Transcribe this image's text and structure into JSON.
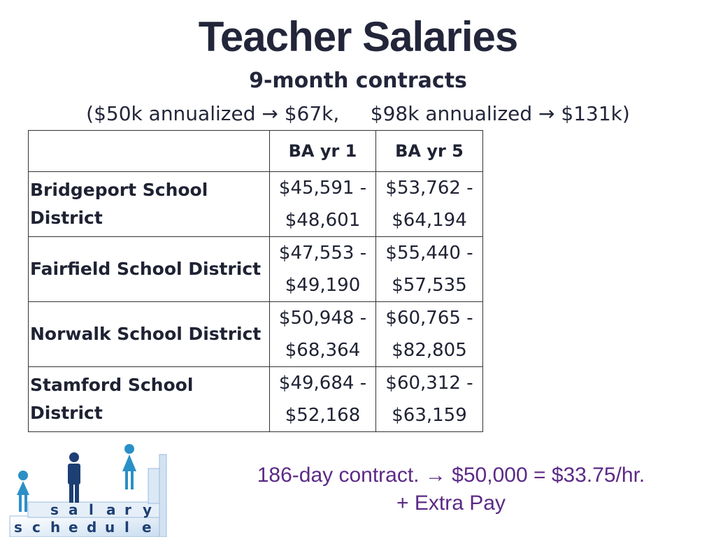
{
  "title": "Teacher Salaries",
  "subtitle": "9-month contracts",
  "note": "($50k annualized → $67k,     $98k annualized → $131k)",
  "table": {
    "headers": [
      "",
      "BA yr 1",
      "BA yr 5"
    ],
    "rows": [
      {
        "district": "Bridgeport School District",
        "ba1_low": "$45,591 -",
        "ba1_high": "$48,601",
        "ba5_low": "$53,762 -",
        "ba5_high": "$64,194"
      },
      {
        "district": "Fairfield School District",
        "ba1_low": "$47,553 -",
        "ba1_high": "$49,190",
        "ba5_low": "$55,440 -",
        "ba5_high": "$57,535"
      },
      {
        "district": "Norwalk School District",
        "ba1_low": "$50,948 -",
        "ba1_high": "$68,364",
        "ba5_low": "$60,765 -",
        "ba5_high": "$82,805"
      },
      {
        "district": "Stamford School District",
        "ba1_low": "$49,684 -",
        "ba1_high": "$52,168",
        "ba5_low": "$60,312 -",
        "ba5_high": "$63,159"
      }
    ]
  },
  "footer": {
    "line1": "186-day contract. → $50,000 = $33.75/hr.",
    "line2": "+ Extra Pay"
  },
  "logo": {
    "top_letters": [
      "s",
      "a",
      "l",
      "a",
      "r",
      "y"
    ],
    "bottom_letters": [
      "s",
      "c",
      "h",
      "e",
      "d",
      "u",
      "l",
      "e"
    ],
    "colors": {
      "figure": "#2b8fc7",
      "block": "#d7e6f4",
      "text": "#1d3f73"
    }
  }
}
